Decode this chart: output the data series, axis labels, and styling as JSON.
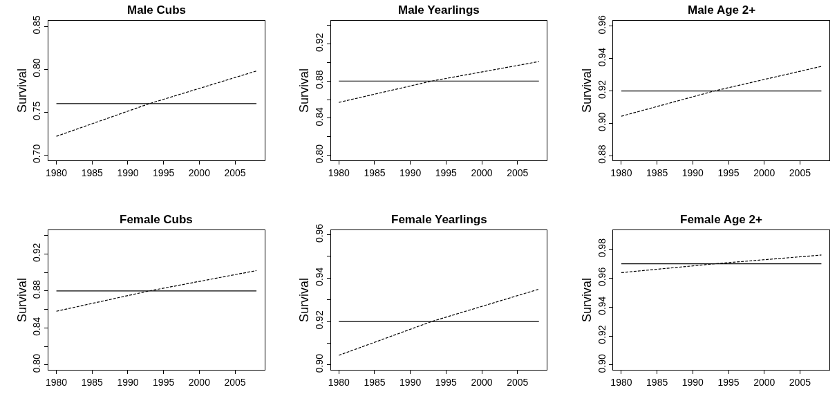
{
  "chart_data": [
    {
      "type": "line",
      "title": "Male Cubs",
      "ylabel": "Survival",
      "xlim": [
        1978.88,
        2009.12
      ],
      "xticks": [
        1980,
        1985,
        1990,
        1995,
        2000,
        2005
      ],
      "ylim": [
        0.694,
        0.8565
      ],
      "yticks": [
        {
          "value": 0.7,
          "label": "0.70"
        },
        0.75,
        {
          "value": 0.8,
          "label": "0.80"
        },
        0.85
      ],
      "marker": "none",
      "series": [
        {
          "color": "#000000",
          "line_style": "solid",
          "x": [
            1980,
            2008
          ],
          "values": [
            0.76,
            0.76
          ]
        },
        {
          "color": "#000000",
          "line_style": "dashed",
          "x": [
            1980,
            1993,
            2008
          ],
          "values": [
            0.722,
            0.76,
            0.798
          ]
        }
      ]
    },
    {
      "type": "line",
      "title": "Male Yearlings",
      "ylabel": "Survival",
      "xlim": [
        1978.88,
        2009.12
      ],
      "xticks": [
        1980,
        1985,
        1990,
        1995,
        2000,
        2005
      ],
      "ylim": [
        0.7945,
        0.945
      ],
      "yticks": [
        {
          "value": 0.8,
          "label": "0.80"
        },
        {
          "value": 0.82,
          "label": null
        },
        0.84,
        {
          "value": 0.86,
          "label": null
        },
        0.88,
        {
          "value": 0.9,
          "label": null
        },
        0.92,
        {
          "value": 0.94,
          "label": null
        }
      ],
      "marker": "none",
      "series": [
        {
          "color": "#000000",
          "line_style": "solid",
          "x": [
            1980,
            2008
          ],
          "values": [
            0.88,
            0.88
          ]
        },
        {
          "color": "#000000",
          "line_style": "dashed",
          "x": [
            1980,
            1993,
            2008
          ],
          "values": [
            0.857,
            0.88,
            0.901
          ]
        }
      ]
    },
    {
      "type": "line",
      "title": "Male Age 2+",
      "ylabel": "Survival",
      "xlim": [
        1978.88,
        2009.12
      ],
      "xticks": [
        1980,
        1985,
        1990,
        1995,
        2000,
        2005
      ],
      "ylim": [
        0.8771,
        0.9634
      ],
      "yticks": [
        0.88,
        {
          "value": 0.9,
          "label": "0.90"
        },
        0.92,
        0.94,
        0.96
      ],
      "marker": "none",
      "series": [
        {
          "color": "#000000",
          "line_style": "solid",
          "x": [
            1980,
            2008
          ],
          "values": [
            0.92,
            0.92
          ]
        },
        {
          "color": "#000000",
          "line_style": "dashed",
          "x": [
            1980,
            1993,
            2008
          ],
          "values": [
            0.9044,
            0.92,
            0.9352
          ]
        }
      ]
    },
    {
      "type": "line",
      "title": "Female Cubs",
      "ylabel": "Survival",
      "xlim": [
        1978.88,
        2009.12
      ],
      "xticks": [
        1980,
        1985,
        1990,
        1995,
        2000,
        2005
      ],
      "ylim": [
        0.7946,
        0.9457
      ],
      "yticks": [
        {
          "value": 0.8,
          "label": "0.80"
        },
        {
          "value": 0.82,
          "label": null
        },
        0.84,
        {
          "value": 0.86,
          "label": null
        },
        0.88,
        {
          "value": 0.9,
          "label": null
        },
        0.92,
        {
          "value": 0.94,
          "label": null
        }
      ],
      "marker": "none",
      "series": [
        {
          "color": "#000000",
          "line_style": "solid",
          "x": [
            1980,
            2008
          ],
          "values": [
            0.88,
            0.88
          ]
        },
        {
          "color": "#000000",
          "line_style": "dashed",
          "x": [
            1980,
            1993,
            2008
          ],
          "values": [
            0.858,
            0.88,
            0.902
          ]
        }
      ]
    },
    {
      "type": "line",
      "title": "Female Yearlings",
      "ylabel": "Survival",
      "xlim": [
        1978.88,
        2009.12
      ],
      "xticks": [
        1980,
        1985,
        1990,
        1995,
        2000,
        2005
      ],
      "ylim": [
        0.8977,
        0.9621
      ],
      "yticks": [
        {
          "value": 0.9,
          "label": "0.90"
        },
        {
          "value": 0.91,
          "label": null
        },
        0.92,
        {
          "value": 0.93,
          "label": null
        },
        0.94,
        {
          "value": 0.95,
          "label": null
        },
        0.96
      ],
      "marker": "none",
      "series": [
        {
          "color": "#000000",
          "line_style": "solid",
          "x": [
            1980,
            2008
          ],
          "values": [
            0.92,
            0.92
          ]
        },
        {
          "color": "#000000",
          "line_style": "dashed",
          "x": [
            1980,
            1993,
            2008
          ],
          "values": [
            0.9044,
            0.92,
            0.9349
          ]
        }
      ]
    },
    {
      "type": "line",
      "title": "Female Age 2+",
      "ylabel": "Survival",
      "xlim": [
        1978.88,
        2009.12
      ],
      "xticks": [
        1980,
        1985,
        1990,
        1995,
        2000,
        2005
      ],
      "ylim": [
        0.8966,
        0.9933
      ],
      "yticks": [
        {
          "value": 0.9,
          "label": "0.90"
        },
        0.92,
        0.94,
        0.96,
        0.98
      ],
      "marker": "none",
      "series": [
        {
          "color": "#000000",
          "line_style": "solid",
          "x": [
            1980,
            2008
          ],
          "values": [
            0.97,
            0.97
          ]
        },
        {
          "color": "#000000",
          "line_style": "dashed",
          "x": [
            1980,
            1993,
            2008
          ],
          "values": [
            0.9639,
            0.97,
            0.9761
          ]
        }
      ]
    }
  ]
}
